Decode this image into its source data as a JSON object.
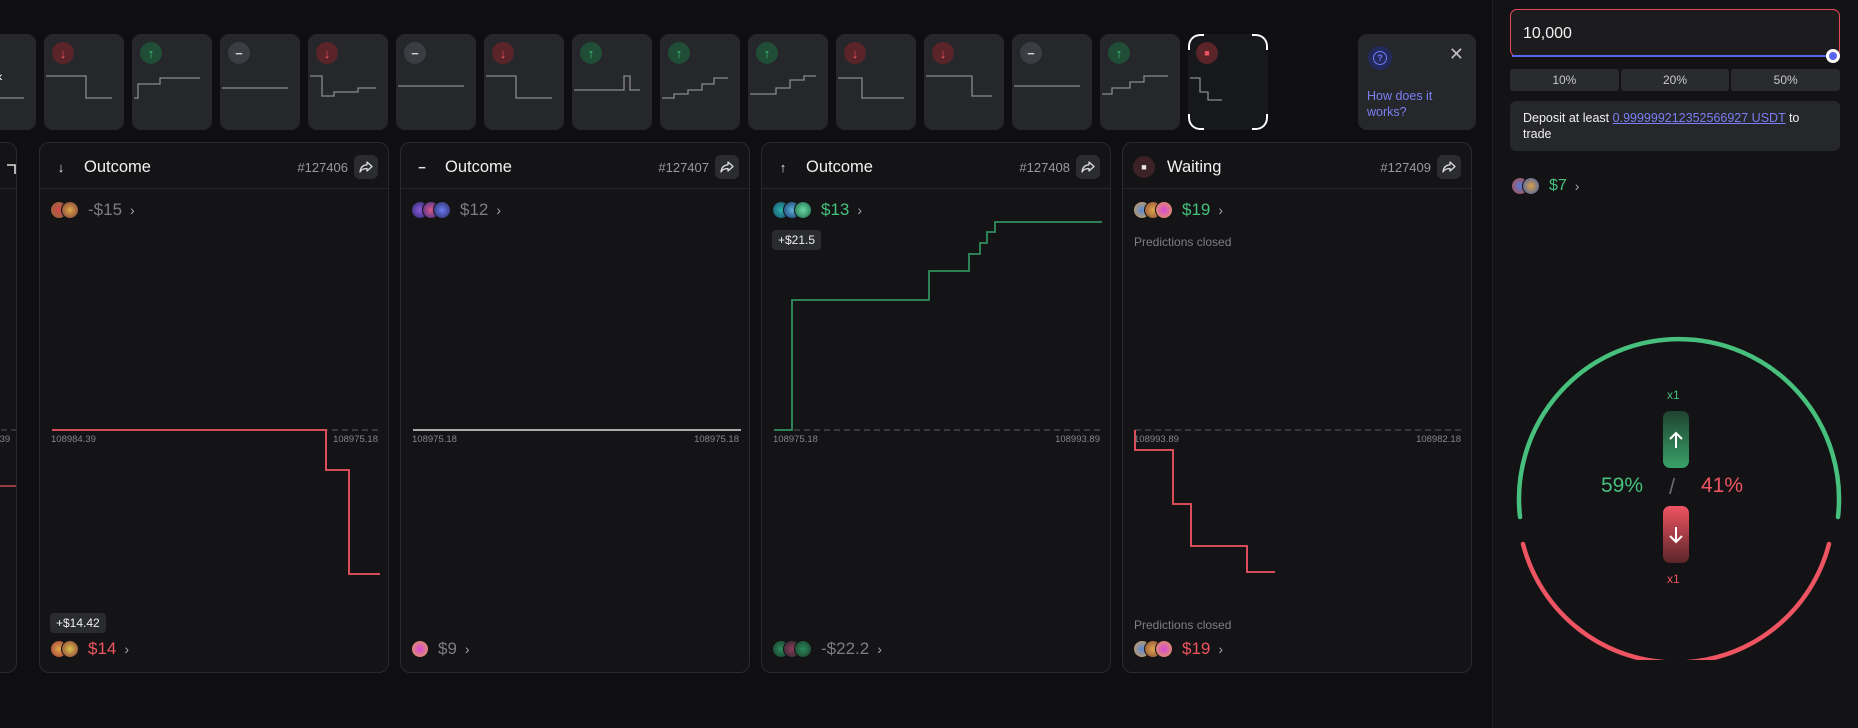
{
  "colors": {
    "up": "#46c07c",
    "down": "#ef5462",
    "flat": "#c8c8c8",
    "accent": "#7b7ff5"
  },
  "rounds_strip": [
    {
      "dir": "down",
      "icon": "arrow-down-icon"
    },
    {
      "dir": "down",
      "icon": "arrow-down-icon"
    },
    {
      "dir": "up",
      "icon": "arrow-up-icon"
    },
    {
      "dir": "flat",
      "icon": "minus-icon"
    },
    {
      "dir": "down",
      "icon": "arrow-down-icon"
    },
    {
      "dir": "flat",
      "icon": "minus-icon"
    },
    {
      "dir": "down",
      "icon": "arrow-down-icon"
    },
    {
      "dir": "up",
      "icon": "arrow-up-icon"
    },
    {
      "dir": "up",
      "icon": "arrow-up-icon"
    },
    {
      "dir": "up",
      "icon": "arrow-up-icon"
    },
    {
      "dir": "down",
      "icon": "arrow-down-icon"
    },
    {
      "dir": "down",
      "icon": "arrow-down-icon"
    },
    {
      "dir": "flat",
      "icon": "minus-icon"
    },
    {
      "dir": "up",
      "icon": "arrow-up-icon"
    },
    {
      "dir": "live",
      "icon": "stop-icon"
    }
  ],
  "help": {
    "link": "How does it works?"
  },
  "cards": [
    {
      "status": "Outcome",
      "id": "#127406",
      "top_amount": "-$15",
      "price_start": "108984.39",
      "price_end": "108975.18",
      "bottom_badge": "+$14.42",
      "bottom_amount": "$14"
    },
    {
      "status": "Outcome",
      "id": "#127407",
      "top_amount": "$12",
      "price_start": "108975.18",
      "price_end": "108975.18",
      "bottom_amount": "$9"
    },
    {
      "status": "Outcome",
      "id": "#127408",
      "top_amount": "$13",
      "top_badge": "+$21.5",
      "price_start": "108975.18",
      "price_end": "108993.89",
      "bottom_amount": "-$22.2"
    },
    {
      "status": "Waiting",
      "id": "#127409",
      "top_amount": "$19",
      "top_note": "Predictions closed",
      "price_start": "108993.89",
      "price_end": "108982.18",
      "bottom_note": "Predictions closed",
      "bottom_amount": "$19"
    }
  ],
  "partial_card": {
    "price_label": ".39"
  },
  "sidebar": {
    "amount": "10,000",
    "percents": [
      "10%",
      "20%",
      "50%"
    ],
    "deposit_prefix": "Deposit at least ",
    "deposit_amount": "0.999999212352566927 USDT",
    "deposit_suffix": " to trade",
    "user_amount": "$7",
    "up_pct": "59%",
    "down_pct": "41%",
    "slash": "/",
    "up_mult": "x1",
    "down_mult": "x1"
  }
}
